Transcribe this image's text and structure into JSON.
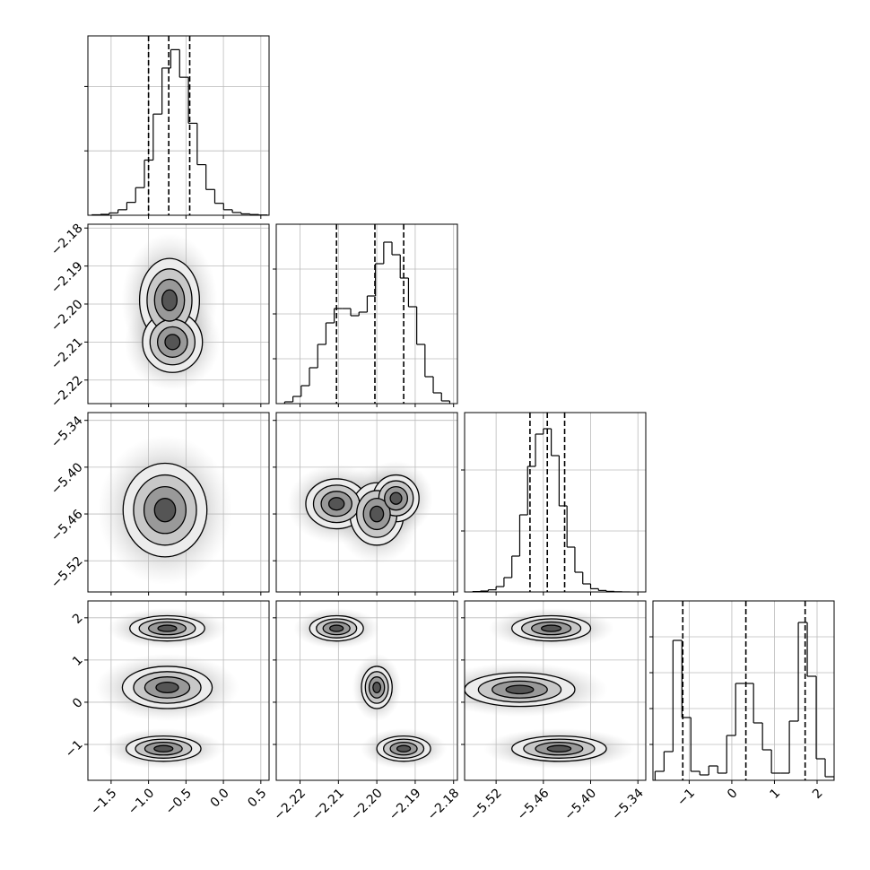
{
  "chart_data": {
    "type": "corner",
    "color": "#000000",
    "grid": true,
    "levels": [
      0.5,
      1,
      1.5,
      2
    ],
    "params": [
      {
        "lim": [
          -1.81,
          0.61
        ],
        "ticks": [
          {
            "value": -1.5,
            "label": "−1.5"
          },
          {
            "value": -1.0,
            "label": "−1.0"
          },
          {
            "value": -0.5,
            "label": "−0.5"
          },
          {
            "value": 0,
            "label": "0.0"
          },
          0.5
        ]
      },
      {
        "lim": [
          -2.2262,
          -2.179
        ],
        "ticks": [
          {
            "value": -2.22,
            "label": "−2.22"
          },
          {
            "value": -2.21,
            "label": "−2.21"
          },
          {
            "value": -2.2,
            "label": "−2.20"
          },
          {
            "value": -2.19,
            "label": "−2.19"
          },
          {
            "value": -2.18,
            "label": "−2.18"
          }
        ]
      },
      {
        "lim": [
          -5.56,
          -5.33
        ],
        "ticks": [
          {
            "value": -5.52,
            "label": "−5.52"
          },
          {
            "value": -5.46,
            "label": "−5.46"
          },
          {
            "value": -5.4,
            "label": "−5.40"
          },
          {
            "value": -5.34,
            "label": "−5.34"
          }
        ]
      },
      {
        "lim": [
          -1.85,
          2.4
        ],
        "ticks": [
          {
            "value": -1,
            "label": "−1"
          },
          0,
          1,
          2
        ]
      }
    ],
    "histograms": [
      {
        "bins": [
          -1.76,
          -1.6425,
          -1.525,
          -1.4075,
          -1.29,
          -1.1725,
          -1.055,
          -0.9375,
          -0.82,
          -0.7025,
          -0.585,
          -0.4675,
          -0.35,
          -0.2325,
          -0.115,
          0.0025,
          0.12,
          0.2375,
          0.355,
          0.4725,
          0.59
        ],
        "values": [
          5,
          10,
          25,
          60,
          140,
          300,
          600,
          1100,
          1600,
          1800,
          1500,
          1000,
          550,
          280,
          130,
          60,
          30,
          15,
          8,
          3
        ],
        "quantiles": [
          -1.0,
          -0.73,
          -0.45
        ],
        "ylim": [
          0,
          1950
        ],
        "yticks": [
          700,
          1400
        ]
      },
      {
        "bins": [
          -2.224,
          -2.22185,
          -2.2197,
          -2.21755,
          -2.2154,
          -2.21325,
          -2.2111,
          -2.20895,
          -2.2068,
          -2.20465,
          -2.2025,
          -2.20035,
          -2.1982,
          -2.19605,
          -2.1939,
          -2.19175,
          -2.1896,
          -2.18745,
          -2.1853,
          -2.18315,
          -2.181
        ],
        "values": [
          10,
          40,
          100,
          200,
          330,
          450,
          530,
          530,
          490,
          510,
          600,
          780,
          900,
          830,
          700,
          540,
          330,
          150,
          60,
          15
        ],
        "quantiles": [
          -2.2105,
          -2.2005,
          -2.193
        ],
        "ylim": [
          0,
          1000
        ],
        "yticks": [
          250,
          500,
          750
        ]
      },
      {
        "bins": [
          -5.55,
          -5.54,
          -5.53,
          -5.52,
          -5.51,
          -5.5,
          -5.49,
          -5.48,
          -5.47,
          -5.46,
          -5.45,
          -5.44,
          -5.43,
          -5.42,
          -5.41,
          -5.4,
          -5.39,
          -5.38,
          -5.37,
          -5.36,
          -5.35
        ],
        "values": [
          2,
          5,
          12,
          30,
          80,
          200,
          430,
          700,
          880,
          910,
          760,
          480,
          250,
          110,
          45,
          18,
          8,
          3,
          1,
          0
        ],
        "quantiles": [
          -5.477,
          -5.455,
          -5.433
        ],
        "ylim": [
          0,
          1000
        ],
        "yticks": [
          340,
          680
        ]
      },
      {
        "bins": [
          -1.8,
          -1.59,
          -1.38,
          -1.17,
          -0.96,
          -0.75,
          -0.54,
          -0.33,
          -0.12,
          0.09,
          0.3,
          0.51,
          0.72,
          0.93,
          1.14,
          1.35,
          1.56,
          1.77,
          1.98,
          2.19,
          2.4
        ],
        "values": [
          50,
          160,
          780,
          350,
          50,
          30,
          80,
          40,
          250,
          540,
          540,
          320,
          170,
          40,
          40,
          330,
          880,
          580,
          120,
          20
        ],
        "quantiles": [
          -1.15,
          0.33,
          1.72
        ],
        "ylim": [
          0,
          1000
        ],
        "yticks": [
          200,
          400,
          600,
          800
        ]
      }
    ],
    "panels": [
      {
        "blobs": [
          {
            "x": -0.72,
            "y": -2.199,
            "sx": 0.2,
            "sy": 0.0055
          },
          {
            "x": -0.68,
            "y": -2.21,
            "sx": 0.2,
            "sy": 0.004
          }
        ]
      },
      {
        "blobs": [
          {
            "x": -0.78,
            "y": -5.455,
            "sx": 0.28,
            "sy": 0.03
          }
        ]
      },
      {
        "blobs": [
          {
            "x": -2.2105,
            "y": -5.447,
            "sx": 0.004,
            "sy": 0.016
          },
          {
            "x": -2.2,
            "y": -5.46,
            "sx": 0.0035,
            "sy": 0.02
          },
          {
            "x": -2.195,
            "y": -5.44,
            "sx": 0.003,
            "sy": 0.015
          }
        ]
      },
      {
        "blobs": [
          {
            "x": -0.75,
            "y": 1.75,
            "sx": 0.25,
            "sy": 0.15
          },
          {
            "x": -0.75,
            "y": 0.35,
            "sx": 0.3,
            "sy": 0.25
          },
          {
            "x": -0.8,
            "y": -1.1,
            "sx": 0.25,
            "sy": 0.15
          }
        ]
      },
      {
        "blobs": [
          {
            "x": -2.2105,
            "y": 1.75,
            "sx": 0.0035,
            "sy": 0.15
          },
          {
            "x": -2.2,
            "y": 0.35,
            "sx": 0.002,
            "sy": 0.25
          },
          {
            "x": -2.193,
            "y": -1.1,
            "sx": 0.0035,
            "sy": 0.15
          }
        ]
      },
      {
        "blobs": [
          {
            "x": -5.45,
            "y": 1.75,
            "sx": 0.025,
            "sy": 0.15
          },
          {
            "x": -5.49,
            "y": 0.3,
            "sx": 0.035,
            "sy": 0.2
          },
          {
            "x": -5.44,
            "y": -1.1,
            "sx": 0.03,
            "sy": 0.15
          }
        ]
      }
    ]
  }
}
